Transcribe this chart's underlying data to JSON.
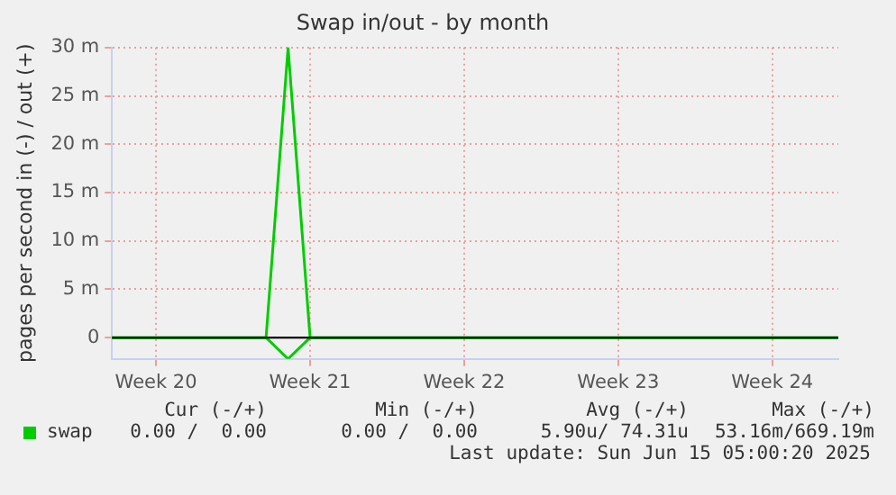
{
  "chart_data": {
    "type": "line",
    "title": "Swap in/out - by month",
    "ylabel": "pages per second in (-) / out (+)",
    "categories": [
      null,
      null,
      "Week 20",
      null,
      null,
      null,
      null,
      null,
      null,
      "Week 21",
      null,
      null,
      null,
      null,
      null,
      null,
      "Week 22",
      null,
      null,
      null,
      null,
      null,
      null,
      "Week 23",
      null,
      null,
      null,
      null,
      null,
      null,
      "Week 24",
      null,
      null,
      null
    ],
    "series": [
      {
        "name": "swap",
        "color": "#00cc00",
        "values": [
          0,
          0,
          0,
          0,
          0,
          0,
          0,
          0,
          30,
          0,
          0,
          0,
          0,
          0,
          0,
          0,
          0,
          0,
          0,
          0,
          0,
          0,
          0,
          0,
          0,
          0,
          0,
          0,
          0,
          0,
          0,
          0,
          0,
          0
        ]
      },
      {
        "color": "#00cc00",
        "values": [
          0,
          0,
          0,
          0,
          0,
          0,
          0,
          0,
          -2.2,
          0,
          0,
          0,
          0,
          0,
          0,
          0,
          0,
          0,
          0,
          0,
          0,
          0,
          0,
          0,
          0,
          0,
          0,
          0,
          0,
          0,
          0,
          0,
          0,
          0
        ]
      }
    ],
    "ylim": [
      -2.2,
      30
    ],
    "yticks": [
      0,
      {
        "value": 5,
        "label": "5 m"
      },
      {
        "value": 10,
        "label": "10 m"
      },
      {
        "value": 15,
        "label": "15 m"
      },
      {
        "value": 20,
        "label": "20 m"
      },
      {
        "value": 25,
        "label": "25 m"
      },
      {
        "value": 30,
        "label": "30 m"
      }
    ],
    "ref_lines": [
      {
        "axis": "y",
        "value": 0,
        "color": "#000000"
      }
    ],
    "grid": true,
    "legend": "bottom left",
    "marker": "none",
    "line_style": "solid",
    "annotations": [
      "Cur (-/+)",
      "Min (-/+)",
      "Avg (-/+)",
      "Max (-/+)",
      "0.00 /  0.00",
      "0.00 /  0.00",
      "5.90u/ 74.31u",
      "53.16m/669.19m",
      "Last update: Sun Jun 15 05:00:20 2025"
    ]
  }
}
